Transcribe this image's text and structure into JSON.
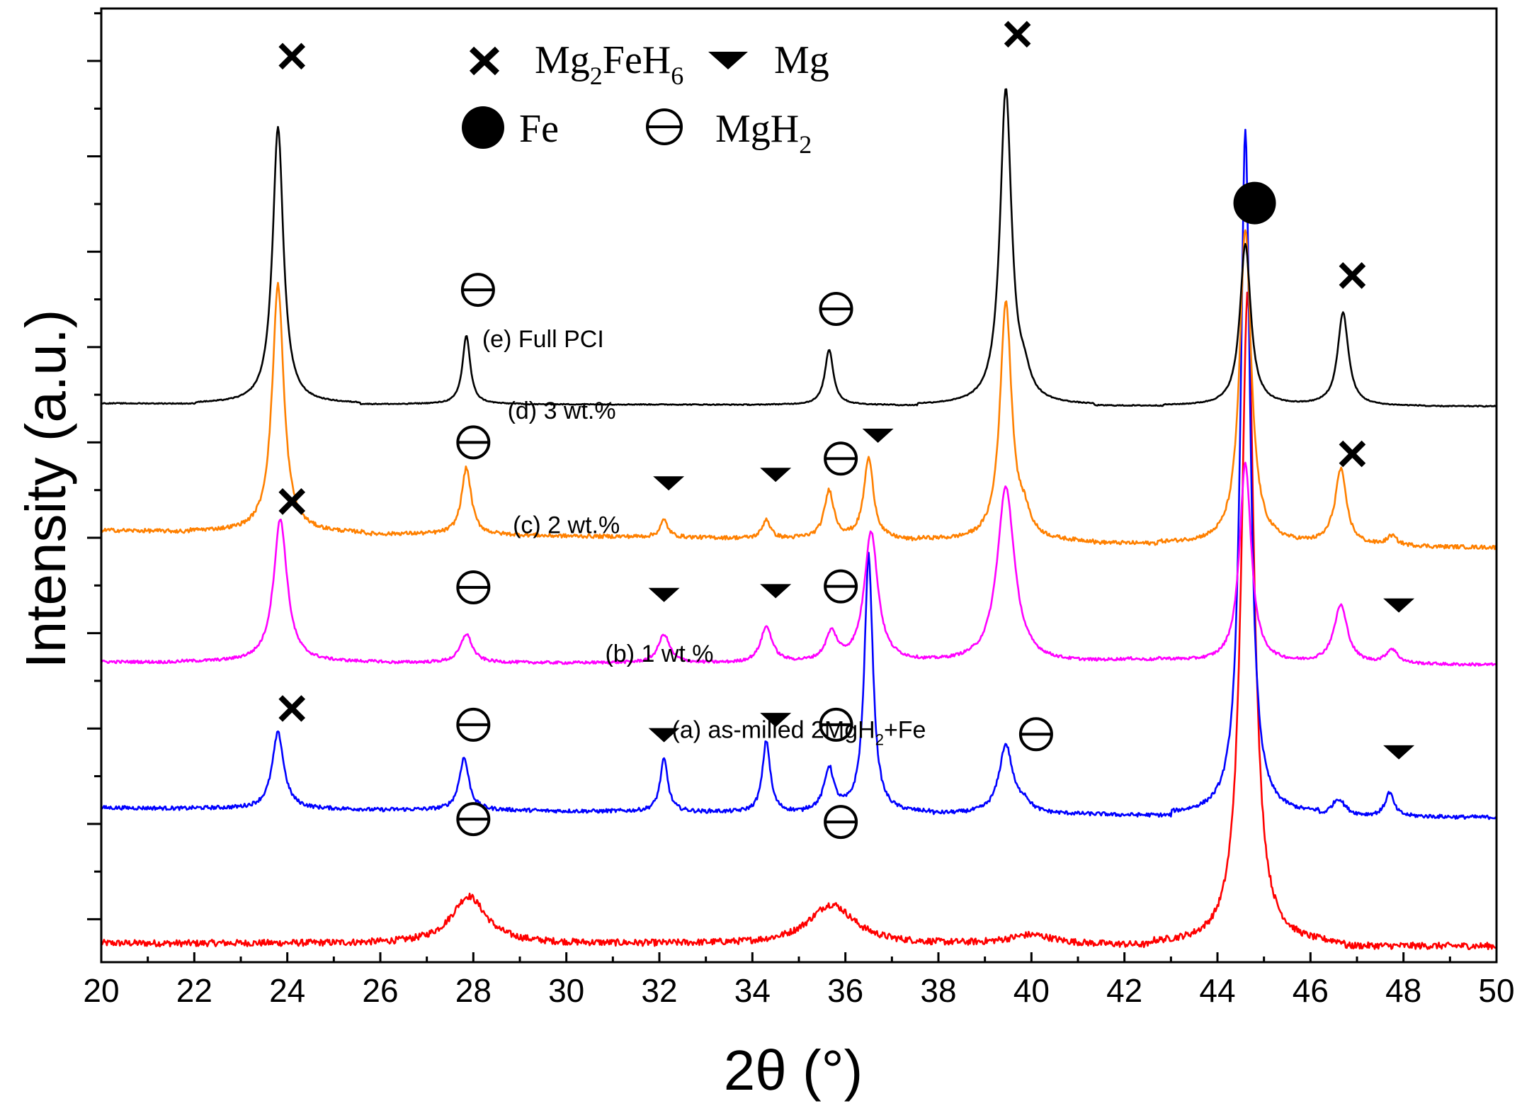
{
  "chart_data": {
    "type": "line",
    "title": "",
    "xlabel": "2θ (°)",
    "ylabel": "Intensity (a.u.)",
    "xlim": [
      20,
      50
    ],
    "x_ticks": [
      20,
      22,
      24,
      26,
      28,
      30,
      32,
      34,
      36,
      38,
      40,
      42,
      44,
      46,
      48,
      50
    ],
    "y_tick_labels_shown": false,
    "ylim": [
      0,
      100
    ],
    "legend": {
      "placement": "top-center",
      "entries": [
        {
          "symbol": "cross",
          "name": "Mg",
          "sub": "2",
          "mid": "FeH",
          "sub2": "6",
          "label": "Mg2FeH6"
        },
        {
          "symbol": "triangle-down",
          "label": "Mg"
        },
        {
          "symbol": "filled-circle",
          "label": "Fe"
        },
        {
          "symbol": "barred-circle",
          "name": "MgH",
          "sub": "2",
          "label": "MgH2"
        }
      ]
    },
    "series": [
      {
        "name": "(a) as-milled 2MgH2+Fe",
        "label_parts": {
          "main": "(a) as-milled 2MgH",
          "sub": "2",
          "tail": "+Fe"
        },
        "color": "#ff0000",
        "baseline": 2.0,
        "baseline_slope": -0.3,
        "noise": 0.35,
        "label_x": 35.0,
        "label_level": 23.5,
        "peaks": [
          {
            "pos": 27.9,
            "height": 5.0,
            "width": 0.9
          },
          {
            "pos": 35.7,
            "height": 4.2,
            "width": 1.2
          },
          {
            "pos": 40.0,
            "height": 1.0,
            "width": 1.2
          },
          {
            "pos": 44.65,
            "height": 68.5,
            "width": 0.33
          }
        ],
        "markers": [
          {
            "type": "barred-circle",
            "x": 28.0,
            "level": 15.0
          },
          {
            "type": "barred-circle",
            "x": 35.9,
            "level": 14.7
          }
        ]
      },
      {
        "name": "(b) 1 wt.%",
        "color": "#0000ff",
        "baseline": 16.2,
        "baseline_slope": -1.0,
        "noise": 0.2,
        "label_x": 32.0,
        "label_level": 31.5,
        "peaks": [
          {
            "pos": 23.8,
            "height": 8.0,
            "width": 0.3
          },
          {
            "pos": 27.8,
            "height": 5.5,
            "width": 0.25
          },
          {
            "pos": 32.1,
            "height": 5.5,
            "width": 0.2
          },
          {
            "pos": 34.3,
            "height": 7.5,
            "width": 0.2
          },
          {
            "pos": 35.65,
            "height": 4.5,
            "width": 0.25
          },
          {
            "pos": 36.5,
            "height": 27.0,
            "width": 0.22
          },
          {
            "pos": 39.45,
            "height": 7.2,
            "width": 0.35
          },
          {
            "pos": 39.85,
            "height": 1.0,
            "width": 0.3
          },
          {
            "pos": 44.6,
            "height": 72.0,
            "width": 0.25
          },
          {
            "pos": 46.6,
            "height": 1.8,
            "width": 0.35
          },
          {
            "pos": 47.7,
            "height": 2.5,
            "width": 0.22
          }
        ],
        "markers": [
          {
            "type": "cross",
            "x": 24.1,
            "level": 26.6
          },
          {
            "type": "barred-circle",
            "x": 28.0,
            "level": 24.9
          },
          {
            "type": "triangle-down",
            "x": 32.1,
            "level": 23.8
          },
          {
            "type": "triangle-down",
            "x": 34.5,
            "level": 25.4
          },
          {
            "type": "barred-circle",
            "x": 35.8,
            "level": 24.9
          },
          {
            "type": "barred-circle",
            "x": 40.1,
            "level": 23.9
          },
          {
            "type": "triangle-down",
            "x": 47.9,
            "level": 22.0
          }
        ]
      },
      {
        "name": "(c) 2 wt.%",
        "color": "#ff00ff",
        "baseline": 31.5,
        "baseline_slope": -0.3,
        "noise": 0.15,
        "label_x": 30.0,
        "label_level": 45.0,
        "peaks": [
          {
            "pos": 23.85,
            "height": 15.0,
            "width": 0.35
          },
          {
            "pos": 27.85,
            "height": 3.0,
            "width": 0.3
          },
          {
            "pos": 32.1,
            "height": 3.0,
            "width": 0.3
          },
          {
            "pos": 34.3,
            "height": 3.8,
            "width": 0.3
          },
          {
            "pos": 35.7,
            "height": 3.0,
            "width": 0.3
          },
          {
            "pos": 36.55,
            "height": 13.8,
            "width": 0.35
          },
          {
            "pos": 39.45,
            "height": 18.5,
            "width": 0.45
          },
          {
            "pos": 42.5,
            "height": 0.5,
            "width": 2.0
          },
          {
            "pos": 44.6,
            "height": 21.0,
            "width": 0.3
          },
          {
            "pos": 46.65,
            "height": 6.2,
            "width": 0.35
          },
          {
            "pos": 47.75,
            "height": 1.5,
            "width": 0.3
          }
        ],
        "markers": [
          {
            "type": "cross",
            "x": 24.1,
            "level": 48.3
          },
          {
            "type": "barred-circle",
            "x": 28.0,
            "level": 39.3
          },
          {
            "type": "triangle-down",
            "x": 32.1,
            "level": 38.5
          },
          {
            "type": "triangle-down",
            "x": 34.5,
            "level": 38.9
          },
          {
            "type": "barred-circle",
            "x": 35.9,
            "level": 39.4
          },
          {
            "type": "triangle-down",
            "x": 47.9,
            "level": 37.4
          }
        ]
      },
      {
        "name": "(d) 3 wt.%",
        "color": "#ff8000",
        "baseline": 45.3,
        "baseline_slope": -1.8,
        "noise": 0.2,
        "label_x": 29.9,
        "label_level": 57.0,
        "peaks": [
          {
            "pos": 23.8,
            "height": 26.0,
            "width": 0.3
          },
          {
            "pos": 27.85,
            "height": 7.0,
            "width": 0.25
          },
          {
            "pos": 32.1,
            "height": 1.8,
            "width": 0.2
          },
          {
            "pos": 34.3,
            "height": 2.0,
            "width": 0.2
          },
          {
            "pos": 35.65,
            "height": 5.0,
            "width": 0.25
          },
          {
            "pos": 36.5,
            "height": 8.5,
            "width": 0.25
          },
          {
            "pos": 39.45,
            "height": 25.0,
            "width": 0.3
          },
          {
            "pos": 39.85,
            "height": 2.0,
            "width": 0.3
          },
          {
            "pos": 44.6,
            "height": 33.0,
            "width": 0.3
          },
          {
            "pos": 46.65,
            "height": 8.0,
            "width": 0.3
          },
          {
            "pos": 47.75,
            "height": 1.0,
            "width": 0.25
          }
        ],
        "markers": [
          {
            "type": "barred-circle",
            "x": 28.0,
            "level": 54.5
          },
          {
            "type": "triangle-down",
            "x": 32.2,
            "level": 50.2
          },
          {
            "type": "triangle-down",
            "x": 34.5,
            "level": 51.1
          },
          {
            "type": "barred-circle",
            "x": 35.9,
            "level": 52.8
          },
          {
            "type": "triangle-down",
            "x": 36.7,
            "level": 55.2
          },
          {
            "type": "cross",
            "x": 46.9,
            "level": 53.3
          }
        ]
      },
      {
        "name": "(e) Full PCI",
        "color": "#000000",
        "baseline": 58.6,
        "baseline_slope": -0.3,
        "noise": 0.05,
        "label_x": 29.5,
        "label_level": 64.5,
        "peaks": [
          {
            "pos": 23.8,
            "height": 29.0,
            "width": 0.28
          },
          {
            "pos": 27.85,
            "height": 7.2,
            "width": 0.2
          },
          {
            "pos": 35.65,
            "height": 5.8,
            "width": 0.22
          },
          {
            "pos": 39.45,
            "height": 33.0,
            "width": 0.3
          },
          {
            "pos": 39.85,
            "height": 2.0,
            "width": 0.3
          },
          {
            "pos": 44.6,
            "height": 17.0,
            "width": 0.28
          },
          {
            "pos": 46.7,
            "height": 9.8,
            "width": 0.28
          }
        ],
        "markers": [
          {
            "type": "cross",
            "x": 24.1,
            "level": 95.0
          },
          {
            "type": "barred-circle",
            "x": 28.1,
            "level": 70.5
          },
          {
            "type": "barred-circle",
            "x": 35.8,
            "level": 68.5
          },
          {
            "type": "cross",
            "x": 39.7,
            "level": 97.3
          },
          {
            "type": "filled-circle",
            "x": 44.8,
            "level": 79.6
          },
          {
            "type": "cross",
            "x": 46.9,
            "level": 72.0
          }
        ]
      }
    ]
  }
}
